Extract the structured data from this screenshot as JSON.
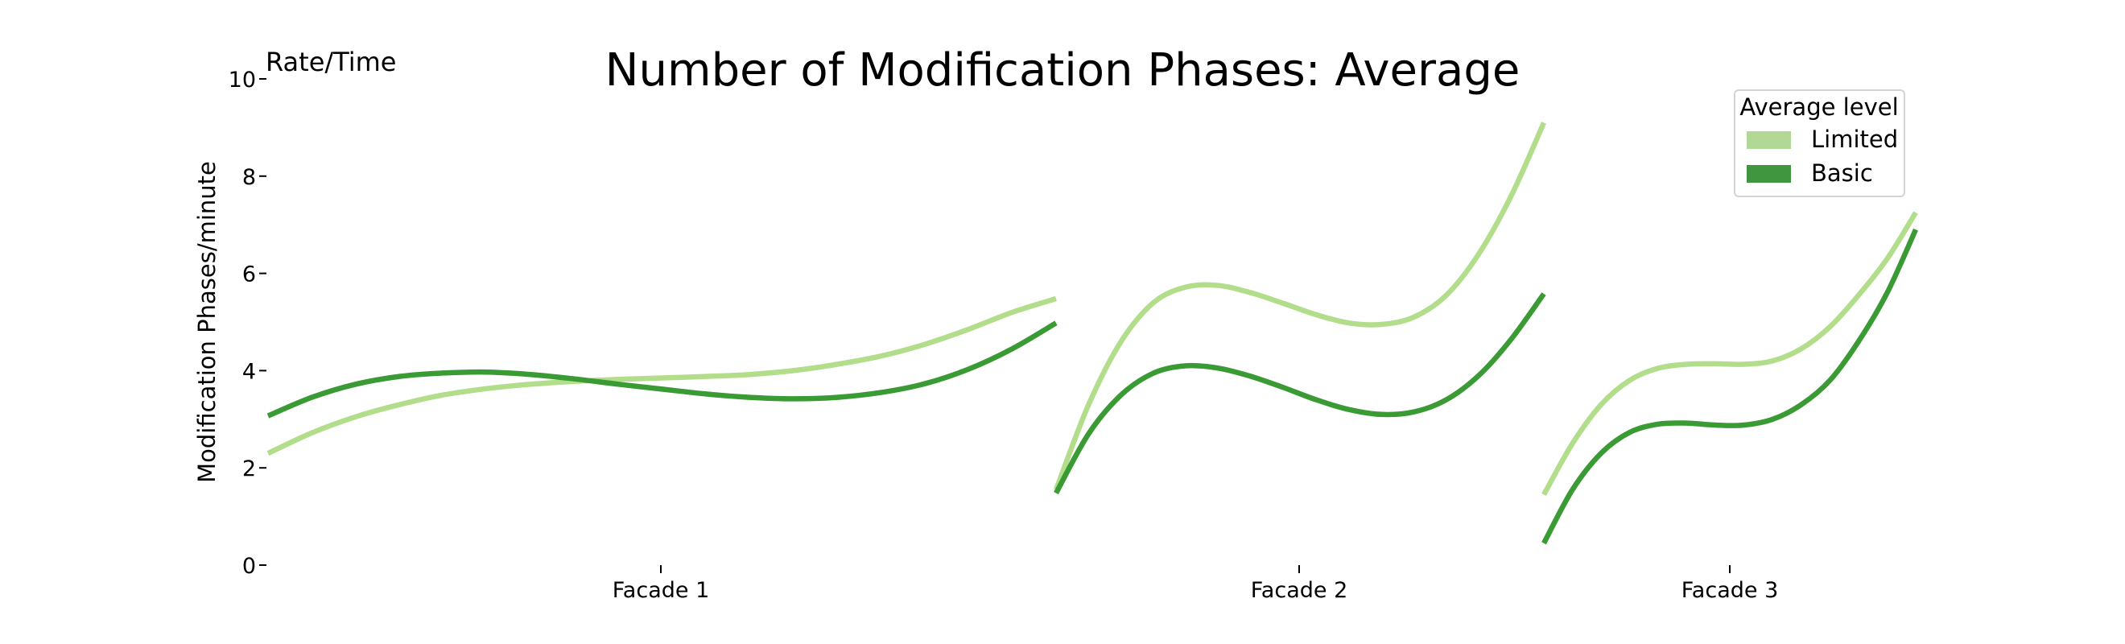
{
  "chart_data": {
    "type": "line",
    "title": "Number of Modification Phases: Average",
    "corner_label": "Rate/Time",
    "ylabel": "Modification Phases/minute",
    "xlabel": "",
    "ylim": [
      0,
      10
    ],
    "yticks": [
      "0",
      "2",
      "4",
      "6",
      "8",
      "10"
    ],
    "grid": false,
    "legend": {
      "title": "Average level",
      "placement": "top-right",
      "entries": [
        "Limited",
        "Basic"
      ]
    },
    "panels": [
      {
        "label": "Facade 1",
        "series": [
          {
            "name": "Limited",
            "color": "#b2dd8b",
            "values": [
              2.3,
              2.72,
              3.05,
              3.3,
              3.5,
              3.63,
              3.72,
              3.78,
              3.82,
              3.85,
              3.88,
              3.92,
              4.0,
              4.13,
              4.3,
              4.54,
              4.85,
              5.2,
              5.48
            ]
          },
          {
            "name": "Basic",
            "color": "#3a9a33",
            "values": [
              3.07,
              3.45,
              3.72,
              3.88,
              3.95,
              3.97,
              3.92,
              3.83,
              3.72,
              3.62,
              3.52,
              3.45,
              3.42,
              3.45,
              3.55,
              3.73,
              4.03,
              4.45,
              4.98
            ]
          }
        ]
      },
      {
        "label": "Facade 2",
        "series": [
          {
            "name": "Limited",
            "color": "#b2dd8b",
            "values": [
              1.55,
              3.3,
              4.6,
              5.4,
              5.72,
              5.75,
              5.6,
              5.38,
              5.15,
              4.98,
              4.95,
              5.1,
              5.55,
              6.4,
              7.6,
              9.1
            ]
          },
          {
            "name": "Basic",
            "color": "#3a9a33",
            "values": [
              1.48,
              2.7,
              3.5,
              3.95,
              4.1,
              4.05,
              3.88,
              3.65,
              3.4,
              3.2,
              3.1,
              3.15,
              3.4,
              3.9,
              4.65,
              5.58
            ]
          }
        ]
      },
      {
        "label": "Facade 3",
        "series": [
          {
            "name": "Limited",
            "color": "#b2dd8b",
            "values": [
              1.45,
              2.5,
              3.3,
              3.8,
              4.05,
              4.13,
              4.14,
              4.13,
              4.2,
              4.45,
              4.9,
              5.55,
              6.3,
              7.25
            ]
          },
          {
            "name": "Basic",
            "color": "#3a9a33",
            "values": [
              0.45,
              1.55,
              2.3,
              2.73,
              2.9,
              2.92,
              2.88,
              2.88,
              3.0,
              3.3,
              3.8,
              4.6,
              5.6,
              6.9
            ]
          }
        ]
      }
    ]
  }
}
